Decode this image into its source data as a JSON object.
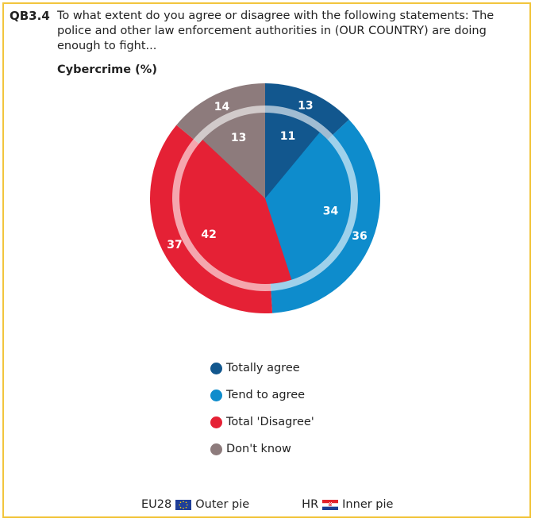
{
  "question_code": "QB3.4",
  "question_text": "To what extent do you agree or disagree with the following statements: The police and other law enforcement authorities in (OUR COUNTRY) are doing enough to fight...",
  "chart_data": {
    "type": "pie",
    "title": "Cybercrime (%)",
    "categories": [
      "Totally agree",
      "Tend to agree",
      "Total 'Disagree'",
      "Don't know"
    ],
    "colors": [
      "#12578e",
      "#0e8ccc",
      "#e52135",
      "#8d7b7c"
    ],
    "series": [
      {
        "name": "EU28",
        "ring": "outer",
        "values": [
          13,
          36,
          37,
          14
        ]
      },
      {
        "name": "HR",
        "ring": "inner",
        "values": [
          11,
          34,
          42,
          13
        ]
      }
    ]
  },
  "legend": [
    {
      "label": "Totally agree",
      "color": "#12578e"
    },
    {
      "label": "Tend to agree",
      "color": "#0e8ccc"
    },
    {
      "label": "Total 'Disagree'",
      "color": "#e52135"
    },
    {
      "label": "Don't know",
      "color": "#8d7b7c"
    }
  ],
  "footer": {
    "outer_code": "EU28",
    "outer_label": "Outer pie",
    "inner_code": "HR",
    "inner_label": "Inner pie"
  }
}
